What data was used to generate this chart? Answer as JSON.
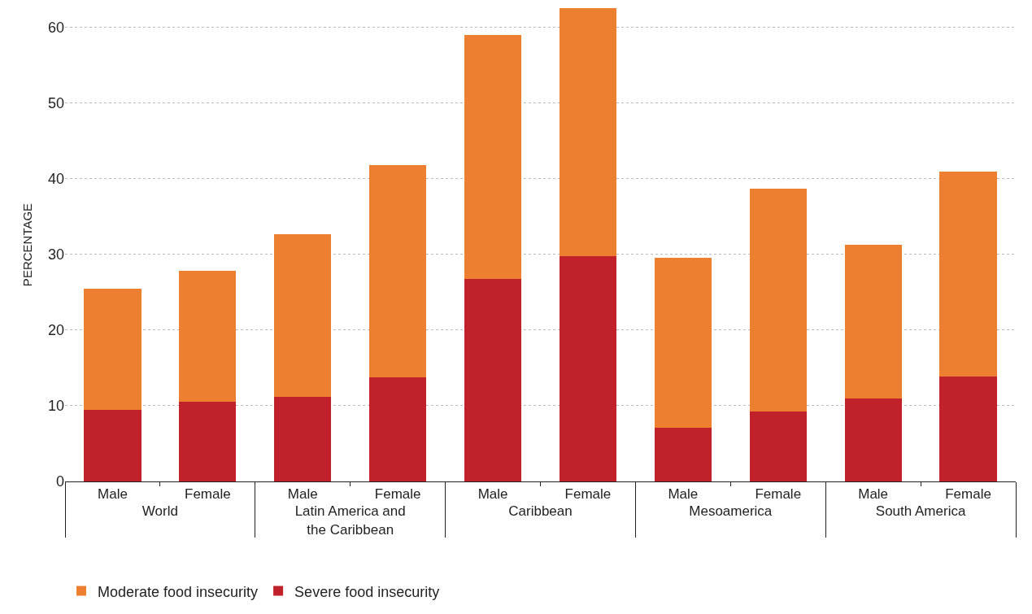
{
  "chart_data": {
    "type": "bar",
    "stacked": true,
    "ylabel": "PERCENTAGE",
    "categories": [
      "Male",
      "Female",
      "Male",
      "Female",
      "Male",
      "Female",
      "Male",
      "Female",
      "Male",
      "Female"
    ],
    "annotations": [
      "World",
      "Latin America and the Caribbean",
      "Caribbean",
      "Mesoamerica",
      "South America"
    ],
    "series": [
      {
        "name": "Severe food insecurity",
        "color": "#c0212a",
        "values": [
          9.4,
          10.5,
          11.2,
          13.7,
          26.7,
          29.7,
          7.1,
          9.2,
          11.0,
          13.9
        ]
      },
      {
        "name": "Moderate food insecurity",
        "color": "#ed7f31",
        "values": [
          16.0,
          17.3,
          21.5,
          28.1,
          32.3,
          32.8,
          22.4,
          29.5,
          20.3,
          27.0
        ]
      }
    ],
    "ylim": [
      0,
      62.5
    ],
    "yticks": [
      0,
      10,
      20,
      30,
      40,
      50,
      60
    ],
    "grid": "y",
    "legend": "bottom left"
  }
}
